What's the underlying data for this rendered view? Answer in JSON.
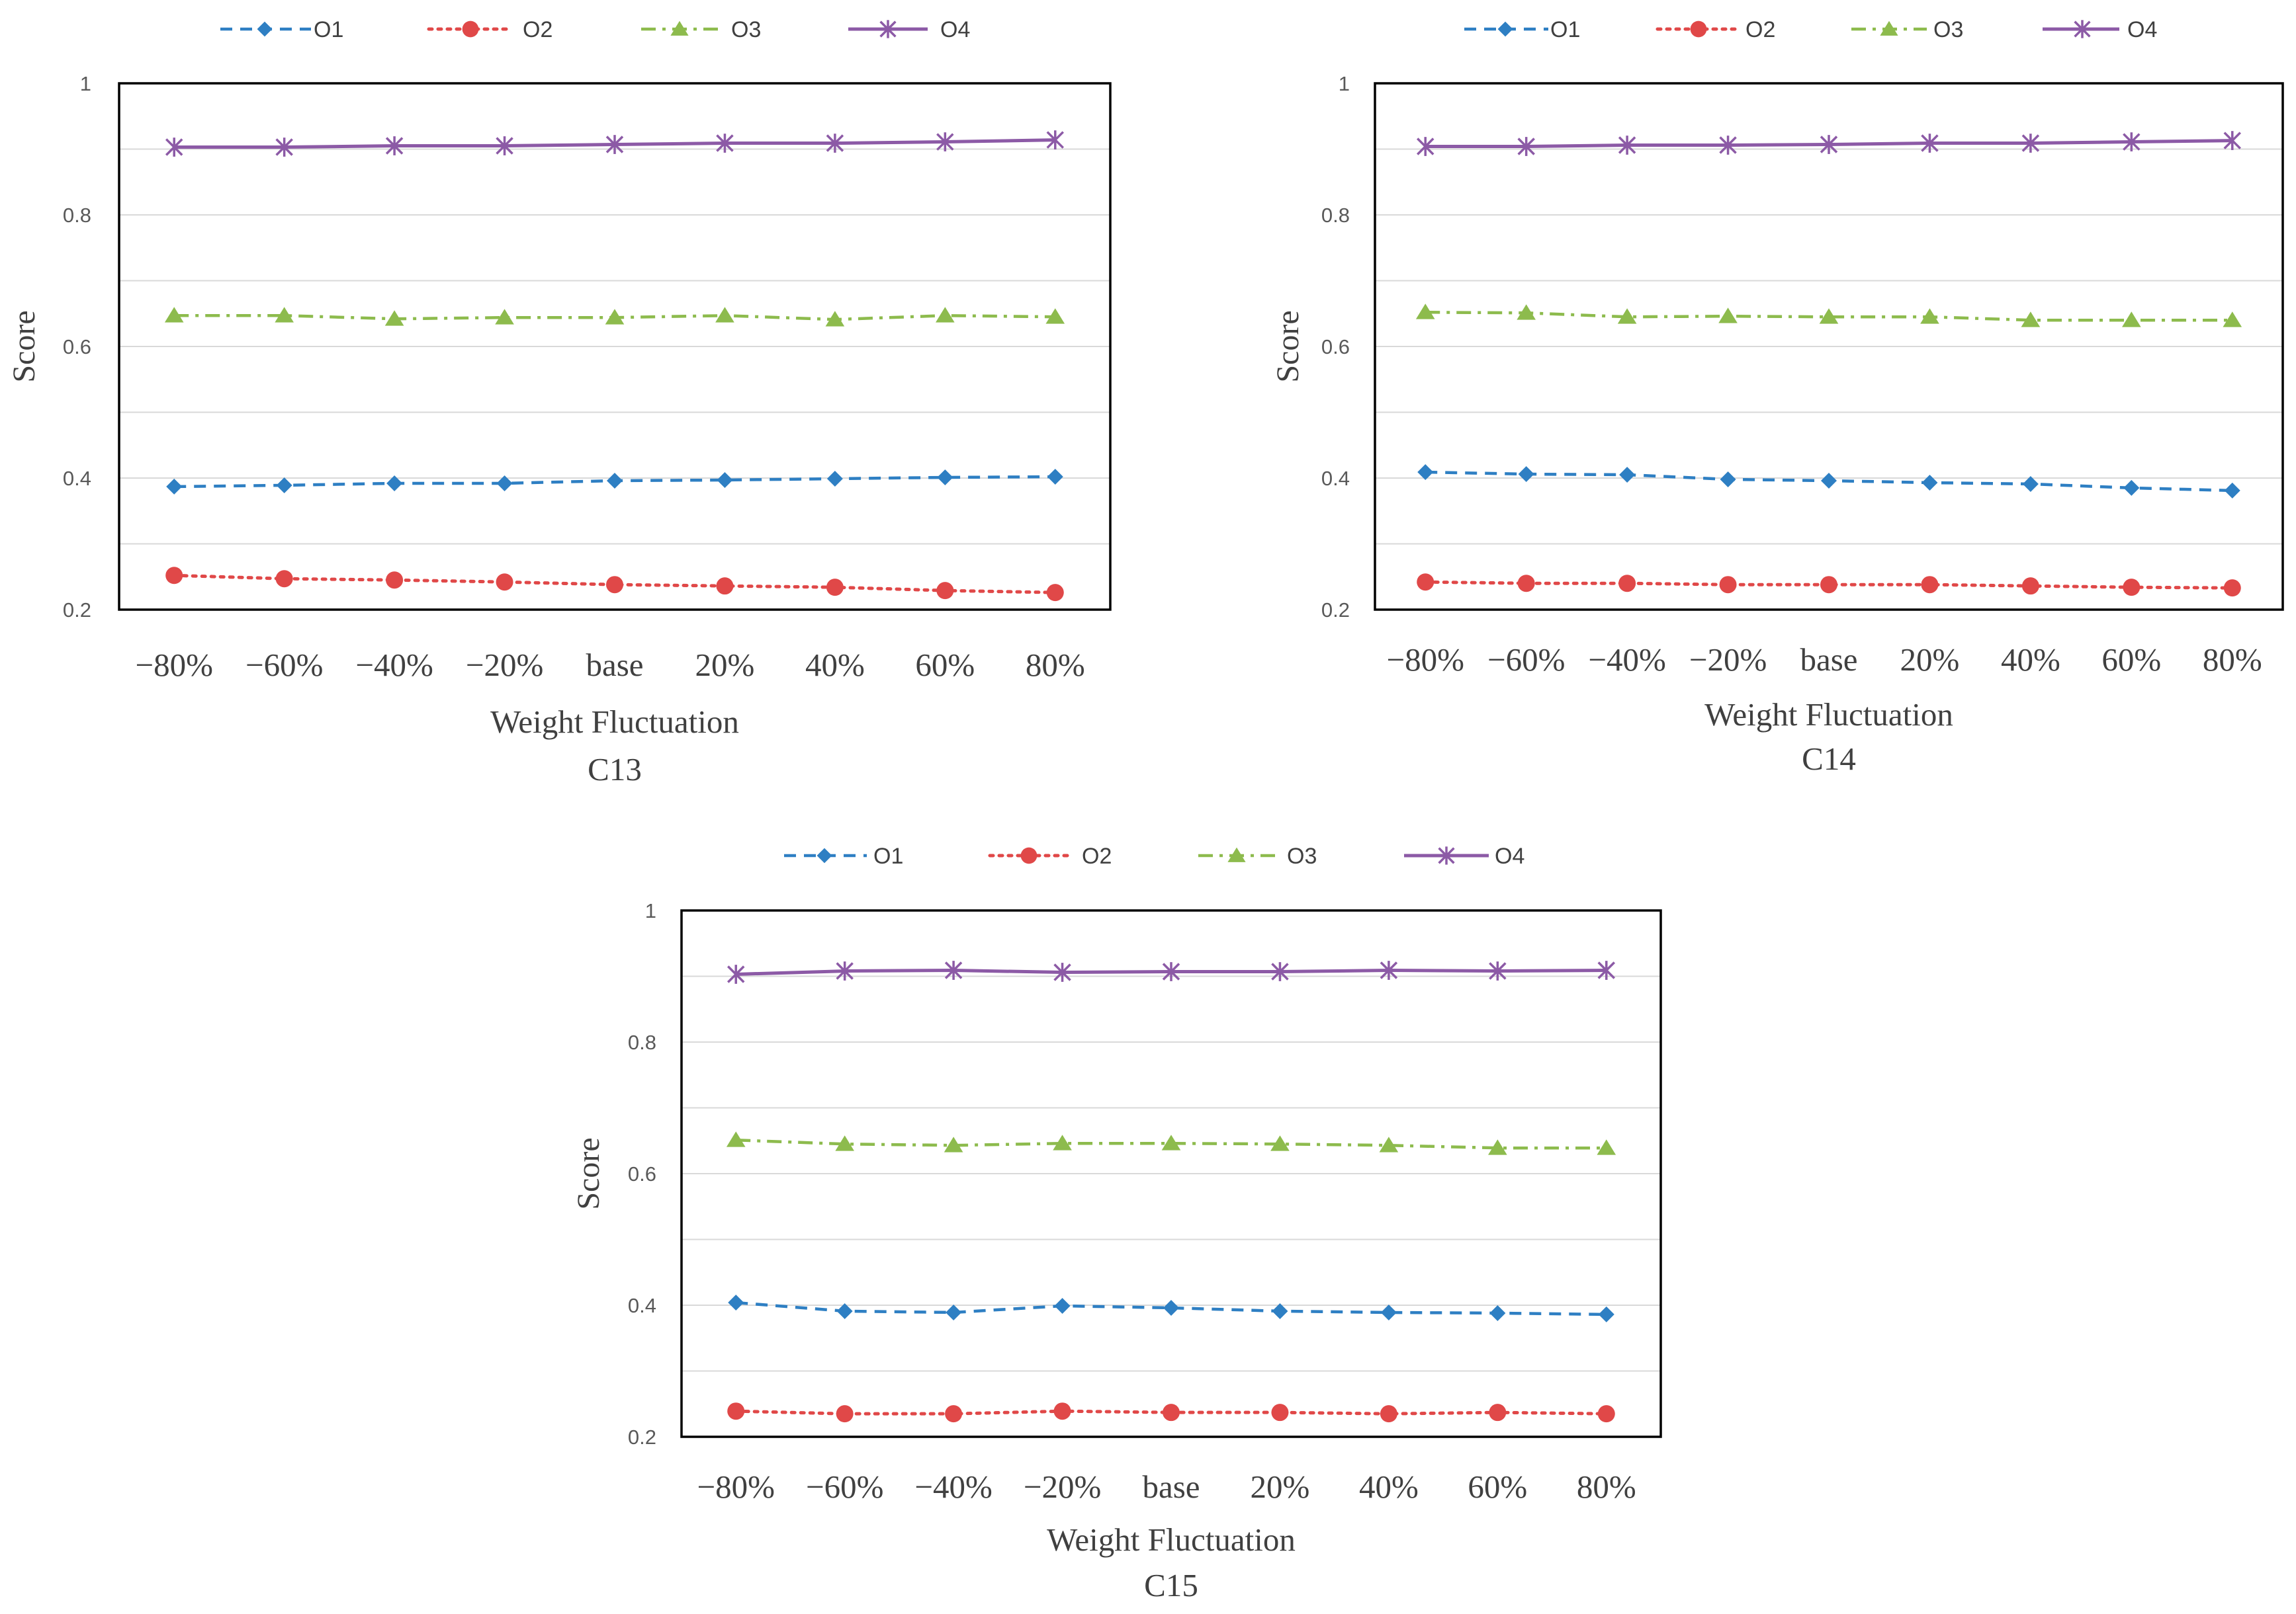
{
  "colors": {
    "O1": "#2e7fc3",
    "O2": "#e04848",
    "O3": "#8dbb4d",
    "O4": "#8c5aa6",
    "grid": "#d9d9d9",
    "frame": "#000000"
  },
  "chart_data": [
    {
      "type": "line",
      "title": "C13",
      "xlabel": "Weight Fluctuation",
      "ylabel": "Score",
      "ylim": [
        0.2,
        1
      ],
      "yticks": [
        "0.2",
        "0.4",
        "0.6",
        "0.8",
        "1"
      ],
      "categories": [
        "−80%",
        "−60%",
        "−40%",
        "−20%",
        "base",
        "20%",
        "40%",
        "60%",
        "80%"
      ],
      "legend_position": "top",
      "series": [
        {
          "name": "O1",
          "marker": "diamond",
          "dash": "dashed",
          "values": [
            0.387,
            0.389,
            0.392,
            0.392,
            0.396,
            0.397,
            0.399,
            0.401,
            0.402
          ]
        },
        {
          "name": "O2",
          "marker": "circle",
          "dash": "dotted",
          "values": [
            0.252,
            0.247,
            0.245,
            0.242,
            0.238,
            0.236,
            0.234,
            0.229,
            0.226
          ]
        },
        {
          "name": "O3",
          "marker": "triangle",
          "dash": "dashdot",
          "values": [
            0.647,
            0.647,
            0.642,
            0.644,
            0.644,
            0.647,
            0.641,
            0.647,
            0.645
          ]
        },
        {
          "name": "O4",
          "marker": "star",
          "dash": "solid",
          "values": [
            0.903,
            0.903,
            0.905,
            0.905,
            0.907,
            0.909,
            0.909,
            0.911,
            0.914
          ]
        }
      ]
    },
    {
      "type": "line",
      "title": "C14",
      "xlabel": "Weight Fluctuation",
      "ylabel": "Score",
      "ylim": [
        0.2,
        1
      ],
      "yticks": [
        "0.2",
        "0.4",
        "0.6",
        "0.8",
        "1"
      ],
      "categories": [
        "−80%",
        "−60%",
        "−40%",
        "−20%",
        "base",
        "20%",
        "40%",
        "60%",
        "80%"
      ],
      "legend_position": "top",
      "series": [
        {
          "name": "O1",
          "marker": "diamond",
          "dash": "dashed",
          "values": [
            0.409,
            0.406,
            0.405,
            0.398,
            0.396,
            0.393,
            0.391,
            0.385,
            0.381
          ]
        },
        {
          "name": "O2",
          "marker": "circle",
          "dash": "dotted",
          "values": [
            0.242,
            0.24,
            0.24,
            0.238,
            0.238,
            0.238,
            0.236,
            0.234,
            0.233
          ]
        },
        {
          "name": "O3",
          "marker": "triangle",
          "dash": "dashdot",
          "values": [
            0.652,
            0.651,
            0.645,
            0.646,
            0.645,
            0.645,
            0.64,
            0.64,
            0.64
          ]
        },
        {
          "name": "O4",
          "marker": "star",
          "dash": "solid",
          "values": [
            0.904,
            0.904,
            0.906,
            0.906,
            0.907,
            0.909,
            0.909,
            0.911,
            0.913
          ]
        }
      ]
    },
    {
      "type": "line",
      "title": "C15",
      "xlabel": "Weight Fluctuation",
      "ylabel": "Score",
      "ylim": [
        0.2,
        1
      ],
      "yticks": [
        "0.2",
        "0.4",
        "0.6",
        "0.8",
        "1"
      ],
      "categories": [
        "−80%",
        "−60%",
        "−40%",
        "−20%",
        "base",
        "20%",
        "40%",
        "60%",
        "80%"
      ],
      "legend_position": "top",
      "series": [
        {
          "name": "O1",
          "marker": "diamond",
          "dash": "dashed",
          "values": [
            0.404,
            0.391,
            0.389,
            0.399,
            0.396,
            0.391,
            0.389,
            0.388,
            0.386
          ]
        },
        {
          "name": "O2",
          "marker": "circle",
          "dash": "dotted",
          "values": [
            0.239,
            0.235,
            0.235,
            0.239,
            0.237,
            0.237,
            0.235,
            0.237,
            0.235
          ]
        },
        {
          "name": "O3",
          "marker": "triangle",
          "dash": "dashdot",
          "values": [
            0.651,
            0.645,
            0.643,
            0.646,
            0.646,
            0.645,
            0.643,
            0.639,
            0.639
          ]
        },
        {
          "name": "O4",
          "marker": "star",
          "dash": "solid",
          "values": [
            0.903,
            0.908,
            0.909,
            0.906,
            0.907,
            0.907,
            0.909,
            0.908,
            0.909
          ]
        }
      ]
    }
  ]
}
